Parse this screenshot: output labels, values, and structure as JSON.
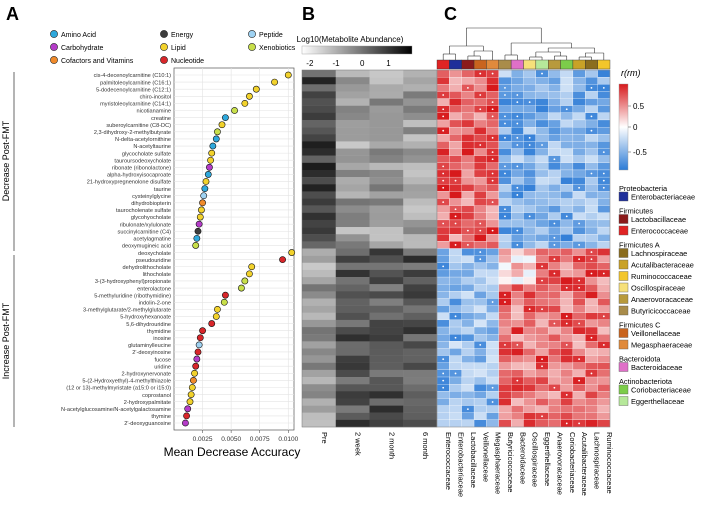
{
  "panels": {
    "a": "A",
    "b": "B",
    "c": "C"
  },
  "legend_a": [
    {
      "label": "Amino Acid",
      "color": "#2ea8dc"
    },
    {
      "label": "Energy",
      "color": "#3c3c3c"
    },
    {
      "label": "Peptide",
      "color": "#9fd2f2"
    },
    {
      "label": "Carbohydrate",
      "color": "#b43cc8"
    },
    {
      "label": "Lipid",
      "color": "#f2d22c"
    },
    {
      "label": "Xenobiotics",
      "color": "#c8df4a"
    },
    {
      "label": "Cofactors and Vitamins",
      "color": "#f08a2a"
    },
    {
      "label": "Nucleotide",
      "color": "#d8262a"
    }
  ],
  "group_labels": {
    "decrease": "Decrease Post-FMT",
    "increase": "Increase Post-FMT"
  },
  "b_header": {
    "title": "Log10(Metabolite Abundance)",
    "scale_ticks": [
      "-2",
      "-1",
      "0",
      "1"
    ]
  },
  "timepoints": [
    "Pre",
    "2 week",
    "2 month",
    "6 month"
  ],
  "c_scale": {
    "title": "r(rm)",
    "ticks": [
      "0.5",
      "0",
      "-0.5"
    ]
  },
  "taxa_legend": [
    {
      "phylum": "Proteobacteria",
      "families": [
        {
          "name": "Enterobacteriaceae",
          "color": "#1f2f9a"
        }
      ]
    },
    {
      "phylum": "Firmicutes",
      "families": [
        {
          "name": "Lactobacillaceae",
          "color": "#8b1b1b"
        },
        {
          "name": "Enterococcaceae",
          "color": "#e02424"
        }
      ]
    },
    {
      "phylum": "Firmicutes A",
      "families": [
        {
          "name": "Lachnospiraceae",
          "color": "#8b6d1e"
        },
        {
          "name": "Acutalibacteraceae",
          "color": "#c9a227"
        },
        {
          "name": "Ruminococcaceae",
          "color": "#f3c62b"
        },
        {
          "name": "Oscillospiraceae",
          "color": "#f6e07a"
        },
        {
          "name": "Anaerovoracaceae",
          "color": "#b89a3c"
        },
        {
          "name": "Butyricicoccaceae",
          "color": "#a98c4a"
        }
      ]
    },
    {
      "phylum": "Firmicutes C",
      "families": [
        {
          "name": "Veillonellaceae",
          "color": "#c9641e"
        },
        {
          "name": "Megasphaeraceae",
          "color": "#e08a3c"
        }
      ]
    },
    {
      "phylum": "Bacteroidota",
      "families": [
        {
          "name": "Bacteroidaceae",
          "color": "#e070c8"
        }
      ]
    },
    {
      "phylum": "Actinobacteriota",
      "families": [
        {
          "name": "Coriobacteriaceae",
          "color": "#7ccc4a"
        },
        {
          "name": "Eggerthellaceae",
          "color": "#b6e89a"
        }
      ]
    }
  ],
  "c_columns": [
    "Enterococcaceae",
    "Enterobacteriaceae",
    "Lactobacillaceae",
    "Veillonellaceae",
    "Megasphaeraceae",
    "Butyricicoccaceae",
    "Bacteroidaceae",
    "Oscillospiraceae",
    "Eggerthellaceae",
    "Anaerovoracaceae",
    "Coriobacteriaceae",
    "Acutalibacteraceae",
    "Lachnospiraceae",
    "Ruminococcaceae"
  ],
  "chart_data": {
    "type": "scatter",
    "xlabel": "Mean Decrease Accuracy",
    "xlim": [
      0,
      0.0105
    ],
    "xticks": [
      "0.0025",
      "0.0050",
      "0.0075",
      "0.0100"
    ],
    "metabolites": [
      {
        "name": "cis-4-decenoylcarnitine (C10:1)",
        "value": 0.01,
        "class": "Lipid",
        "group": "decrease"
      },
      {
        "name": "palmitoleoylcarnitine (C16:1)",
        "value": 0.0088,
        "class": "Lipid",
        "group": "decrease"
      },
      {
        "name": "5-dodecenoylcarnitine (C12:1)",
        "value": 0.0072,
        "class": "Lipid",
        "group": "decrease"
      },
      {
        "name": "chiro-inositol",
        "value": 0.0066,
        "class": "Lipid",
        "group": "decrease"
      },
      {
        "name": "myristoleoylcarnitine (C14:1)",
        "value": 0.0062,
        "class": "Lipid",
        "group": "decrease"
      },
      {
        "name": "nicotianamine",
        "value": 0.0053,
        "class": "Xenobiotics",
        "group": "decrease"
      },
      {
        "name": "creatine",
        "value": 0.0045,
        "class": "Amino Acid",
        "group": "decrease"
      },
      {
        "name": "suberoylcarnitine (C8-DC)",
        "value": 0.0042,
        "class": "Lipid",
        "group": "decrease"
      },
      {
        "name": "2,3-dihydroxy-2-methylbutyrate",
        "value": 0.0038,
        "class": "Xenobiotics",
        "group": "decrease"
      },
      {
        "name": "N-delta-acetylornithine",
        "value": 0.0037,
        "class": "Amino Acid",
        "group": "decrease"
      },
      {
        "name": "N-acetyltaurine",
        "value": 0.0034,
        "class": "Amino Acid",
        "group": "decrease"
      },
      {
        "name": "glycocholate sulfate",
        "value": 0.0033,
        "class": "Lipid",
        "group": "decrease"
      },
      {
        "name": "tauroursodeoxycholate",
        "value": 0.0032,
        "class": "Lipid",
        "group": "decrease"
      },
      {
        "name": "ribonate (ribonolactone)",
        "value": 0.0031,
        "class": "Carbohydrate",
        "group": "decrease"
      },
      {
        "name": "alpha-hydroxyisocaproate",
        "value": 0.003,
        "class": "Amino Acid",
        "group": "decrease"
      },
      {
        "name": "21-hydroxypregnenolone disulfate",
        "value": 0.0028,
        "class": "Lipid",
        "group": "decrease"
      },
      {
        "name": "taurine",
        "value": 0.0027,
        "class": "Amino Acid",
        "group": "decrease"
      },
      {
        "name": "cysteinylglycine",
        "value": 0.0026,
        "class": "Peptide",
        "group": "decrease"
      },
      {
        "name": "dihydrobiopterin",
        "value": 0.0025,
        "class": "Cofactors and Vitamins",
        "group": "decrease"
      },
      {
        "name": "taurocholenate sulfate",
        "value": 0.0024,
        "class": "Lipid",
        "group": "decrease"
      },
      {
        "name": "glycohyocholate",
        "value": 0.0023,
        "class": "Lipid",
        "group": "decrease"
      },
      {
        "name": "ribulonate/xylulonate",
        "value": 0.0022,
        "class": "Carbohydrate",
        "group": "decrease"
      },
      {
        "name": "succinylcarnitine (C4)",
        "value": 0.0021,
        "class": "Energy",
        "group": "decrease"
      },
      {
        "name": "acetylagmatine",
        "value": 0.002,
        "class": "Amino Acid",
        "group": "decrease"
      },
      {
        "name": "deoxymugineic acid",
        "value": 0.0019,
        "class": "Xenobiotics",
        "group": "decrease"
      },
      {
        "name": "deoxycholate",
        "value": 0.0103,
        "class": "Lipid",
        "group": "increase"
      },
      {
        "name": "pseudouridine",
        "value": 0.0095,
        "class": "Nucleotide",
        "group": "increase"
      },
      {
        "name": "dehydrolithocholate",
        "value": 0.0068,
        "class": "Lipid",
        "group": "increase"
      },
      {
        "name": "lithocholate",
        "value": 0.0066,
        "class": "Lipid",
        "group": "increase"
      },
      {
        "name": "3-(3-hydroxyphenyl)propionate",
        "value": 0.0062,
        "class": "Xenobiotics",
        "group": "increase"
      },
      {
        "name": "enterolactone",
        "value": 0.0059,
        "class": "Xenobiotics",
        "group": "increase"
      },
      {
        "name": "5-methyluridine (ribothymidine)",
        "value": 0.0045,
        "class": "Nucleotide",
        "group": "increase"
      },
      {
        "name": "indolin-2-one",
        "value": 0.0044,
        "class": "Xenobiotics",
        "group": "increase"
      },
      {
        "name": "3-methylglutarate/2-methylglutarate",
        "value": 0.0038,
        "class": "Lipid",
        "group": "increase"
      },
      {
        "name": "5-hydroxyhexanoate",
        "value": 0.0037,
        "class": "Lipid",
        "group": "increase"
      },
      {
        "name": "5,6-dihydrouridine",
        "value": 0.0033,
        "class": "Nucleotide",
        "group": "increase"
      },
      {
        "name": "thymidine",
        "value": 0.0025,
        "class": "Nucleotide",
        "group": "increase"
      },
      {
        "name": "inosine",
        "value": 0.0023,
        "class": "Nucleotide",
        "group": "increase"
      },
      {
        "name": "glutaminylleucine",
        "value": 0.0022,
        "class": "Peptide",
        "group": "increase"
      },
      {
        "name": "2'-deoxyinosine",
        "value": 0.0021,
        "class": "Nucleotide",
        "group": "increase"
      },
      {
        "name": "fucose",
        "value": 0.002,
        "class": "Carbohydrate",
        "group": "increase"
      },
      {
        "name": "uridine",
        "value": 0.0019,
        "class": "Nucleotide",
        "group": "increase"
      },
      {
        "name": "2-hydroxynervonate",
        "value": 0.0018,
        "class": "Lipid",
        "group": "increase"
      },
      {
        "name": "5-(2-Hydroxyethyl)-4-methylthiazole",
        "value": 0.0017,
        "class": "Cofactors and Vitamins",
        "group": "increase"
      },
      {
        "name": "(12 or 13)-methylmyristate (a15:0 or i15:0)",
        "value": 0.0016,
        "class": "Lipid",
        "group": "increase"
      },
      {
        "name": "coprostanol",
        "value": 0.0015,
        "class": "Lipid",
        "group": "increase"
      },
      {
        "name": "2-hydroxypalmitate",
        "value": 0.0014,
        "class": "Lipid",
        "group": "increase"
      },
      {
        "name": "N-acetylglucosamine/N-acetylgalactosamine",
        "value": 0.0012,
        "class": "Carbohydrate",
        "group": "increase"
      },
      {
        "name": "thymine",
        "value": 0.0011,
        "class": "Nucleotide",
        "group": "increase"
      },
      {
        "name": "2'-deoxyguanosine",
        "value": 0.001,
        "class": "Carbohydrate",
        "group": "increase"
      }
    ]
  }
}
